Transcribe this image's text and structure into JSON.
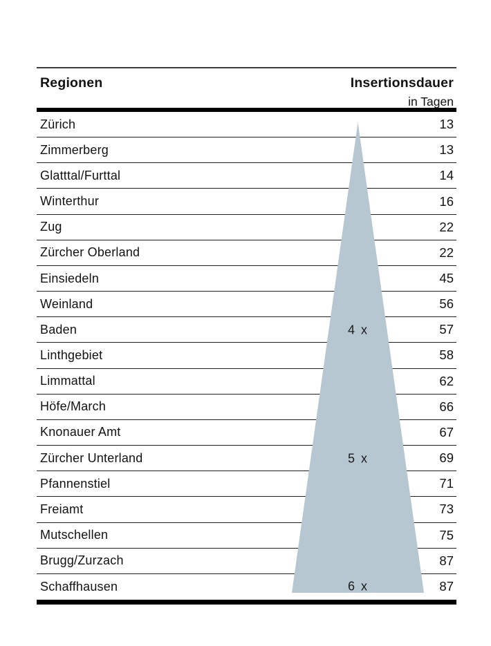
{
  "figure": {
    "header": {
      "col_regions": "Regionen",
      "col_duration": "Insertionsdauer",
      "col_duration_unit": "in Tagen"
    },
    "triangle": {
      "color": "#b6c7d1",
      "labels": [
        {
          "text": "4 x",
          "row_index": 9
        },
        {
          "text": "5 x",
          "row_index": 14
        },
        {
          "text": "6 x",
          "row_index": 19
        }
      ]
    }
  },
  "chart_data": {
    "type": "table",
    "title": "",
    "columns": [
      "Regionen",
      "Insertionsdauer in Tagen"
    ],
    "categories": [
      "Zürich",
      "Zimmerberg",
      "Glatttal/Furttal",
      "Winterthur",
      "Zug",
      "Zürcher Oberland",
      "Einsiedeln",
      "Weinland",
      "Baden",
      "Linthgebiet",
      "Limmattal",
      "Höfe/March",
      "Knonauer Amt",
      "Zürcher Unterland",
      "Pfannenstiel",
      "Freiamt",
      "Mutschellen",
      "Brugg/Zurzach",
      "Schaffhausen"
    ],
    "values": [
      13,
      13,
      14,
      16,
      22,
      22,
      45,
      56,
      57,
      58,
      62,
      66,
      67,
      69,
      71,
      73,
      75,
      87,
      87
    ],
    "annotations": [
      {
        "label": "4 x",
        "at_region": "Baden"
      },
      {
        "label": "5 x",
        "at_region": "Zürcher Unterland"
      },
      {
        "label": "6 x",
        "at_region": "Schaffhausen"
      }
    ],
    "legend_position": "none",
    "grid": "horizontal-rules"
  }
}
